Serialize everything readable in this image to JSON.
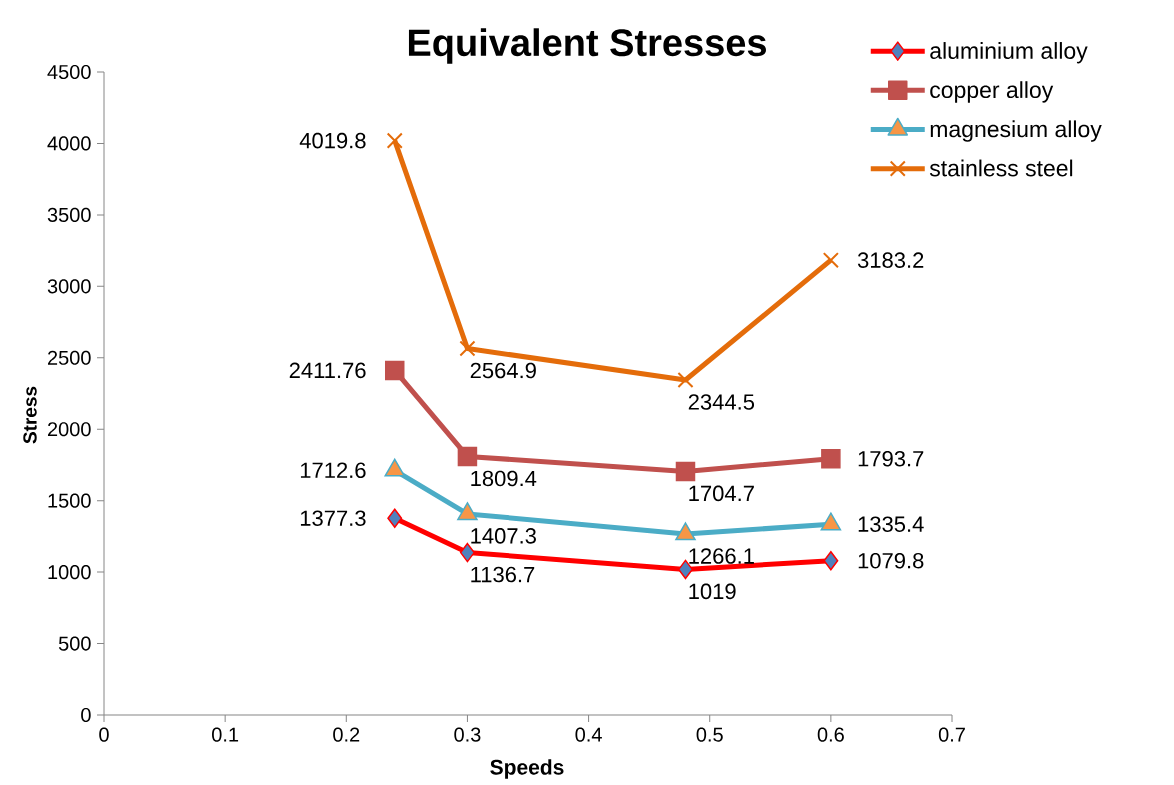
{
  "chart_data": {
    "type": "line",
    "title": "Equivalent Stresses",
    "xlabel": "Speeds",
    "ylabel": "Stress",
    "x": [
      0.24,
      0.3,
      0.48,
      0.6
    ],
    "series": [
      {
        "name": "aluminium alloy",
        "color": "#ff0000",
        "marker": "diamond",
        "colors": [
          "#4f81bd",
          "#4f81bd",
          "#4f81bd",
          "#4f81bd"
        ],
        "values": [
          1377.3,
          1136.7,
          1019,
          1079.8
        ]
      },
      {
        "name": "copper alloy",
        "color": "#c0504d",
        "marker": "square",
        "values": [
          2411.76,
          1809.4,
          1704.7,
          1793.7
        ]
      },
      {
        "name": "magnesium alloy",
        "color": "#4bacc6",
        "marker": "triangle",
        "colors": [
          "#f79646",
          "#f79646",
          "#f79646",
          "#f79646"
        ],
        "values": [
          1712.6,
          1407.3,
          1266.1,
          1335.4
        ]
      },
      {
        "name": "stainless steel",
        "color": "#e46c0a",
        "marker": "cross",
        "values": [
          4019.8,
          2564.9,
          2344.5,
          3183.2
        ]
      }
    ],
    "xlim": [
      0,
      0.7
    ],
    "xticks": [
      0,
      0.1,
      0.2,
      0.3,
      0.4,
      0.5,
      0.6,
      0.7
    ],
    "ylim": [
      0,
      4500
    ],
    "yticks": [
      0,
      500,
      1000,
      1500,
      2000,
      2500,
      3000,
      3500,
      4000,
      4500
    ],
    "grid": false,
    "legend": "top right",
    "data_labels": true,
    "line_style": "solid"
  }
}
